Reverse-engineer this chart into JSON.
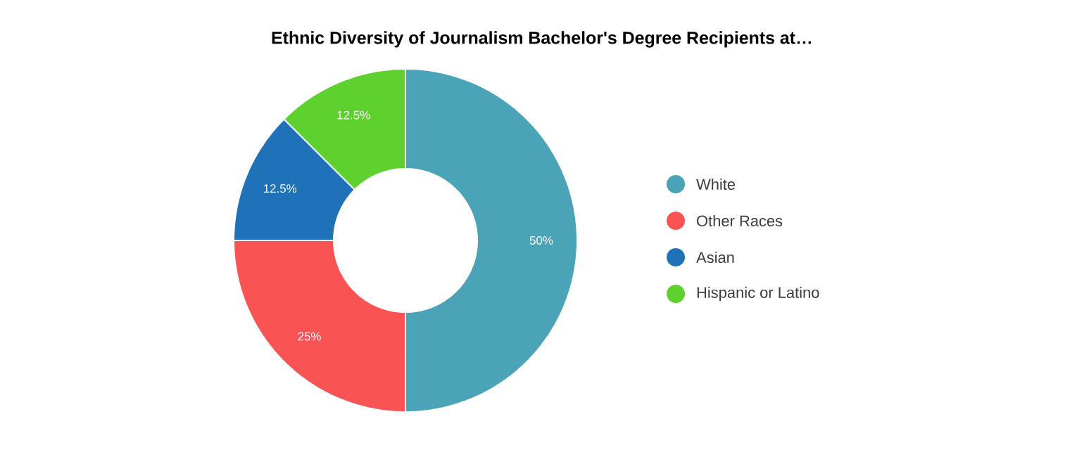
{
  "chart_data": {
    "type": "donut",
    "title": "Ethnic Diversity of Journalism Bachelor's Degree Recipients at…",
    "categories": [
      "White",
      "Other Races",
      "Asian",
      "Hispanic or Latino"
    ],
    "values": [
      50,
      25,
      12.5,
      12.5
    ],
    "colors": [
      "#4aa3b6",
      "#fa5354",
      "#1f72b8",
      "#5ed12f"
    ],
    "value_labels": [
      "50%",
      "25%",
      "12.5%",
      "12.5%"
    ],
    "legend": "right"
  }
}
